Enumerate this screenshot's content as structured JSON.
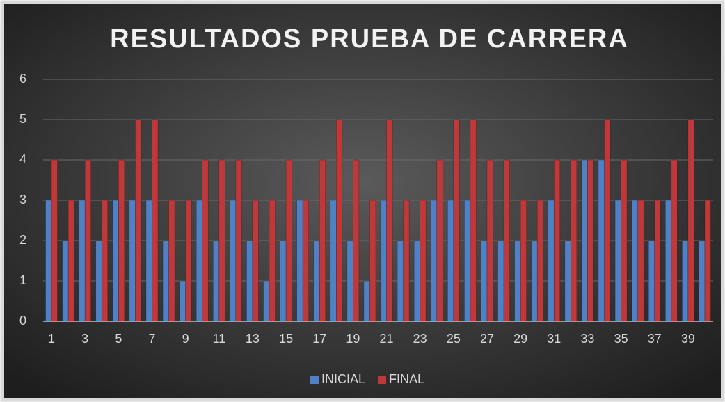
{
  "chart_data": {
    "type": "bar",
    "title": "RESULTADOS PRUEBA DE CARRERA",
    "categories": [
      1,
      null,
      3,
      null,
      5,
      null,
      7,
      null,
      9,
      null,
      11,
      null,
      13,
      null,
      15,
      null,
      17,
      null,
      19,
      null,
      21,
      null,
      23,
      null,
      25,
      null,
      27,
      null,
      29,
      null,
      31,
      null,
      33,
      null,
      35,
      null,
      37,
      null,
      39,
      null
    ],
    "series": [
      {
        "name": "INICIAL",
        "color": "#4f81c7",
        "values": [
          3,
          2,
          3,
          2,
          3,
          3,
          3,
          2,
          1,
          3,
          2,
          3,
          2,
          1,
          2,
          3,
          2,
          3,
          2,
          1,
          3,
          2,
          2,
          3,
          3,
          3,
          2,
          2,
          2,
          2,
          3,
          2,
          4,
          4,
          3,
          3,
          2,
          3,
          2,
          2
        ]
      },
      {
        "name": "FINAL",
        "color": "#c0393a",
        "values": [
          4,
          3,
          4,
          3,
          4,
          5,
          5,
          3,
          3,
          4,
          4,
          4,
          3,
          3,
          4,
          3,
          4,
          5,
          4,
          3,
          5,
          3,
          3,
          4,
          5,
          5,
          4,
          4,
          3,
          3,
          4,
          4,
          4,
          5,
          4,
          3,
          3,
          4,
          5,
          3
        ]
      }
    ],
    "ylim": [
      0,
      6
    ],
    "yticks": [
      0,
      1,
      2,
      3,
      4,
      5,
      6
    ],
    "grid": true,
    "legend": "bottom"
  }
}
